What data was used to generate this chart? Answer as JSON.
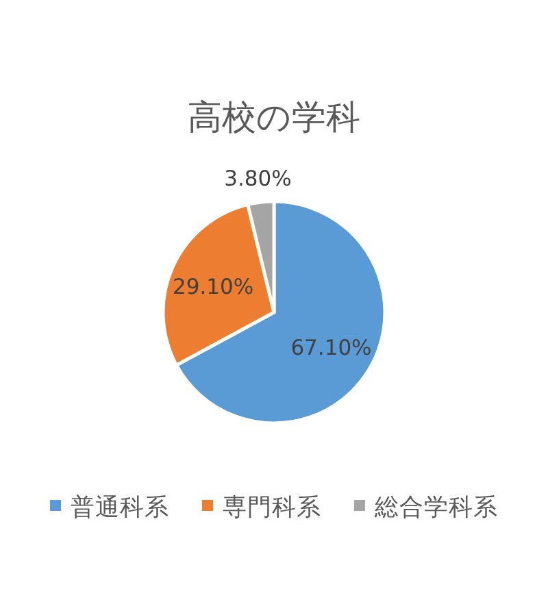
{
  "chart_data": {
    "type": "pie",
    "title": "高校の学科",
    "categories": [
      "普通科系",
      "専門科系",
      "総合学科系"
    ],
    "values": [
      67.1,
      29.1,
      3.8
    ],
    "colors": [
      "#5b9bd5",
      "#ed7d31",
      "#a5a5a5"
    ],
    "value_labels": [
      "67.10%",
      "29.10%",
      "3.80%"
    ],
    "legend": "bottom"
  }
}
